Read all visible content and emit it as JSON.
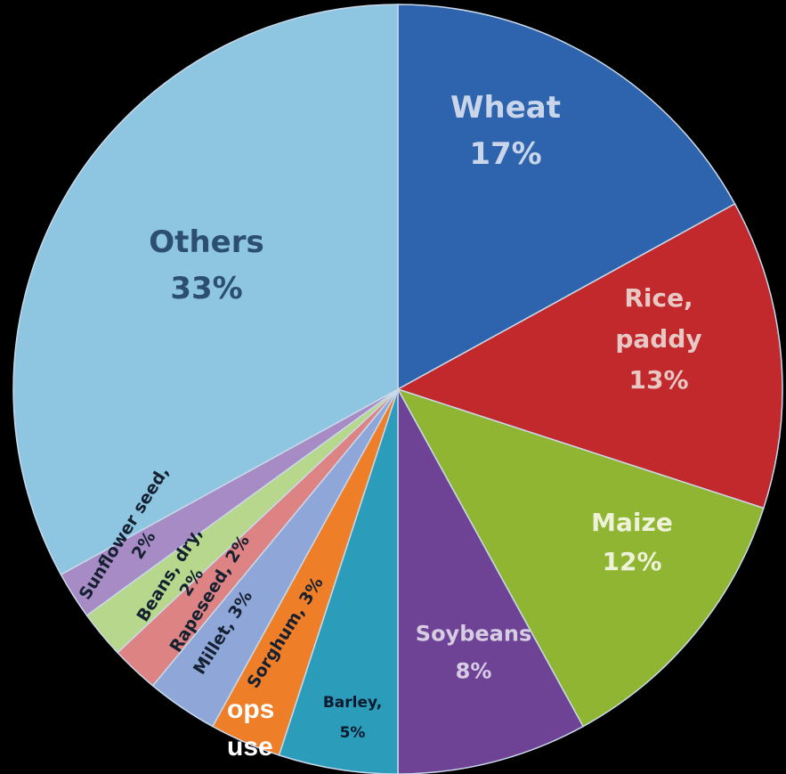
{
  "chart_data": {
    "type": "pie",
    "slices": [
      {
        "name": "Wheat",
        "label": [
          "Wheat",
          "17%"
        ],
        "value": 17,
        "color": "#2e63ad",
        "text_color": "#c9d6ea"
      },
      {
        "name": "Rice, paddy",
        "label": [
          "Rice,",
          "paddy",
          "13%"
        ],
        "value": 13,
        "color": "#c1292c",
        "text_color": "#e8c8c4"
      },
      {
        "name": "Maize",
        "label": [
          "Maize",
          "12%"
        ],
        "value": 12,
        "color": "#8fb532",
        "text_color": "#eef2d8"
      },
      {
        "name": "Soybeans",
        "label": [
          "Soybeans",
          "8%"
        ],
        "value": 8,
        "color": "#6e4396",
        "text_color": "#d6cde3"
      },
      {
        "name": "Barley",
        "label": [
          "Barley,",
          "5%"
        ],
        "value": 5,
        "color": "#2b9cb9",
        "text_color": "#0b1a2e"
      },
      {
        "name": "Sorghum",
        "label": [
          "Sorghum, 3%"
        ],
        "value": 3,
        "color": "#ee7e27",
        "text_color": "#152030"
      },
      {
        "name": "Millet",
        "label": [
          "Millet, 3%"
        ],
        "value": 3,
        "color": "#8ea6d8",
        "text_color": "#152030"
      },
      {
        "name": "Rapeseed",
        "label": [
          "2%",
          "Rapeseed, 2%"
        ],
        "value": 2,
        "color": "#de8383",
        "text_color": "#152030"
      },
      {
        "name": "Beans, dry",
        "label": [
          "Beans, dry,"
        ],
        "value": 2,
        "color": "#b6d78c",
        "text_color": "#152030"
      },
      {
        "name": "Sunflower seed",
        "label": [
          "Sunflower seed,",
          "2%"
        ],
        "value": 2,
        "color": "#a78bc4",
        "text_color": "#152030"
      },
      {
        "name": "Others",
        "label": [
          "Others",
          "33%"
        ],
        "value": 33,
        "color": "#8ec6e1",
        "text_color": "#2c4e70"
      }
    ]
  },
  "side_text": [
    "ops",
    "use"
  ]
}
